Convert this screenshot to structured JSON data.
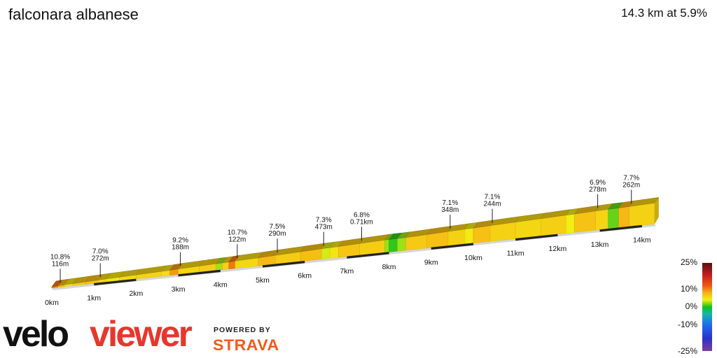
{
  "title": "falconara albanese",
  "summary": "14.3 km at 5.9%",
  "brand": {
    "left": "velo",
    "right": "viewer",
    "powered": "POWERED BY",
    "partner": "STRAVA"
  },
  "colors": {
    "brand_red": "#e6372e",
    "strava_orange": "#f25a1d"
  },
  "chart_data": {
    "type": "area",
    "subtype": "elevation-profile-3d",
    "distance_ticks": [
      "0km",
      "1km",
      "2km",
      "3km",
      "4km",
      "5km",
      "6km",
      "7km",
      "8km",
      "9km",
      "10km",
      "11km",
      "12km",
      "13km",
      "14km"
    ],
    "x_range_km": [
      0,
      14.3
    ],
    "segments": [
      {
        "start": 0.0,
        "end": 0.15,
        "grade": 10.8
      },
      {
        "start": 0.15,
        "end": 0.3,
        "grade": 7.6
      },
      {
        "start": 0.3,
        "end": 0.5,
        "grade": 5.0
      },
      {
        "start": 0.5,
        "end": 0.8,
        "grade": 6.4
      },
      {
        "start": 0.8,
        "end": 1.1,
        "grade": 7.0
      },
      {
        "start": 1.1,
        "end": 1.3,
        "grade": 5.6
      },
      {
        "start": 1.3,
        "end": 1.6,
        "grade": 4.6
      },
      {
        "start": 1.6,
        "end": 2.0,
        "grade": 5.4
      },
      {
        "start": 2.0,
        "end": 2.6,
        "grade": 5.8
      },
      {
        "start": 2.6,
        "end": 2.8,
        "grade": 5.2
      },
      {
        "start": 2.8,
        "end": 3.0,
        "grade": 9.2
      },
      {
        "start": 3.0,
        "end": 3.5,
        "grade": 5.8
      },
      {
        "start": 3.5,
        "end": 3.9,
        "grade": 6.2
      },
      {
        "start": 3.9,
        "end": 4.05,
        "grade": 2.6
      },
      {
        "start": 4.05,
        "end": 4.2,
        "grade": 6.0
      },
      {
        "start": 4.2,
        "end": 4.35,
        "grade": 10.7
      },
      {
        "start": 4.35,
        "end": 4.9,
        "grade": 5.6
      },
      {
        "start": 4.9,
        "end": 5.3,
        "grade": 7.5
      },
      {
        "start": 5.3,
        "end": 5.9,
        "grade": 6.3
      },
      {
        "start": 5.9,
        "end": 6.4,
        "grade": 7.3
      },
      {
        "start": 6.4,
        "end": 6.6,
        "grade": 3.5
      },
      {
        "start": 6.6,
        "end": 6.8,
        "grade": 4.8
      },
      {
        "start": 6.8,
        "end": 7.3,
        "grade": 6.8
      },
      {
        "start": 7.3,
        "end": 7.9,
        "grade": 6.2
      },
      {
        "start": 7.9,
        "end": 8.0,
        "grade": 2.5
      },
      {
        "start": 8.0,
        "end": 8.2,
        "grade": 0.5
      },
      {
        "start": 8.2,
        "end": 8.4,
        "grade": 2.5
      },
      {
        "start": 8.4,
        "end": 8.9,
        "grade": 6.5
      },
      {
        "start": 8.9,
        "end": 9.4,
        "grade": 7.1
      },
      {
        "start": 9.4,
        "end": 9.8,
        "grade": 6.0
      },
      {
        "start": 9.8,
        "end": 10.0,
        "grade": 4.4
      },
      {
        "start": 10.0,
        "end": 10.4,
        "grade": 7.1
      },
      {
        "start": 10.4,
        "end": 11.0,
        "grade": 6.0
      },
      {
        "start": 11.0,
        "end": 11.6,
        "grade": 5.6
      },
      {
        "start": 11.6,
        "end": 12.2,
        "grade": 6.1
      },
      {
        "start": 12.2,
        "end": 12.4,
        "grade": 4.2
      },
      {
        "start": 12.4,
        "end": 12.9,
        "grade": 6.9
      },
      {
        "start": 12.9,
        "end": 13.2,
        "grade": 5.8
      },
      {
        "start": 13.2,
        "end": 13.45,
        "grade": 1.5
      },
      {
        "start": 13.45,
        "end": 13.7,
        "grade": 7.7
      },
      {
        "start": 13.7,
        "end": 14.3,
        "grade": 6.0
      }
    ],
    "annotations": [
      {
        "km": 0.15,
        "grade": "10.8%",
        "length": "116m"
      },
      {
        "km": 1.1,
        "grade": "7.0%",
        "length": "272m"
      },
      {
        "km": 3.0,
        "grade": "9.2%",
        "length": "188m"
      },
      {
        "km": 4.35,
        "grade": "10.7%",
        "length": "122m"
      },
      {
        "km": 5.3,
        "grade": "7.5%",
        "length": "290m"
      },
      {
        "km": 6.4,
        "grade": "7.3%",
        "length": "473m"
      },
      {
        "km": 7.3,
        "grade": "6.8%",
        "length": "0.71km"
      },
      {
        "km": 9.4,
        "grade": "7.1%",
        "length": "348m"
      },
      {
        "km": 10.4,
        "grade": "7.1%",
        "length": "244m"
      },
      {
        "km": 12.9,
        "grade": "6.9%",
        "length": "278m"
      },
      {
        "km": 13.7,
        "grade": "7.7%",
        "length": "262m"
      }
    ],
    "legend": {
      "labels": [
        "25%",
        "10%",
        "0%",
        "-10%",
        "-25%"
      ],
      "stops": [
        {
          "grade": 25,
          "color": "#5a0f0f"
        },
        {
          "grade": 18,
          "color": "#c61e1e"
        },
        {
          "grade": 12,
          "color": "#ee5a12"
        },
        {
          "grade": 8,
          "color": "#f7b215"
        },
        {
          "grade": 4,
          "color": "#f2f012"
        },
        {
          "grade": 0,
          "color": "#12c21e"
        },
        {
          "grade": -4,
          "color": "#12b8a8"
        },
        {
          "grade": -10,
          "color": "#1e6ef0"
        },
        {
          "grade": -18,
          "color": "#2a32c8"
        },
        {
          "grade": -25,
          "color": "#7b3fa0"
        }
      ]
    }
  }
}
